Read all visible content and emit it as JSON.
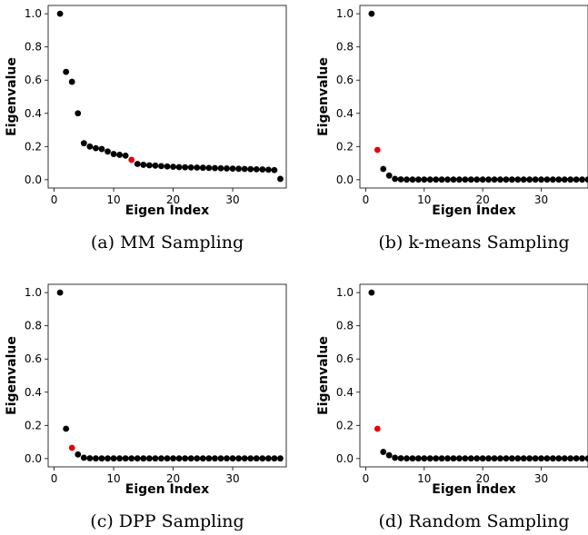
{
  "chart_data": [
    {
      "type": "scatter",
      "caption": "(a) MM Sampling",
      "xlabel": "Eigen Index",
      "ylabel": "Eigenvalue",
      "xlim": [
        -1,
        39
      ],
      "ylim": [
        -0.05,
        1.05
      ],
      "xticks": [
        "0",
        "10",
        "20",
        "30"
      ],
      "yticks": [
        "0.0",
        "0.2",
        "0.4",
        "0.6",
        "0.8",
        "1.0"
      ],
      "x": [
        1,
        2,
        3,
        4,
        5,
        6,
        7,
        8,
        9,
        10,
        11,
        12,
        13,
        14,
        15,
        16,
        17,
        18,
        19,
        20,
        21,
        22,
        23,
        24,
        25,
        26,
        27,
        28,
        29,
        30,
        31,
        32,
        33,
        34,
        35,
        36,
        37,
        38
      ],
      "y": [
        1.0,
        0.65,
        0.59,
        0.4,
        0.22,
        0.2,
        0.19,
        0.185,
        0.17,
        0.155,
        0.15,
        0.145,
        0.12,
        0.095,
        0.09,
        0.087,
        0.085,
        0.082,
        0.08,
        0.078,
        0.076,
        0.075,
        0.074,
        0.073,
        0.072,
        0.071,
        0.07,
        0.069,
        0.068,
        0.067,
        0.066,
        0.065,
        0.064,
        0.063,
        0.062,
        0.06,
        0.058,
        0.005
      ],
      "highlight_index": 13,
      "colors": {
        "point": "#000000",
        "highlight": "#e8000b"
      }
    },
    {
      "type": "scatter",
      "caption": "(b) k-means Sampling",
      "xlabel": "Eigen Index",
      "ylabel": "Eigenvalue",
      "xlim": [
        -1,
        38
      ],
      "ylim": [
        -0.05,
        1.05
      ],
      "xticks": [
        "0",
        "10",
        "20",
        "30"
      ],
      "yticks": [
        "0.0",
        "0.2",
        "0.4",
        "0.6",
        "0.8",
        "1.0"
      ],
      "x": [
        1,
        2,
        3,
        4,
        5,
        6,
        7,
        8,
        9,
        10,
        11,
        12,
        13,
        14,
        15,
        16,
        17,
        18,
        19,
        20,
        21,
        22,
        23,
        24,
        25,
        26,
        27,
        28,
        29,
        30,
        31,
        32,
        33,
        34,
        35,
        36,
        37,
        38
      ],
      "y": [
        1.0,
        0.18,
        0.065,
        0.025,
        0.005,
        0.002,
        0.001,
        0.001,
        0.001,
        0.001,
        0.001,
        0.001,
        0.001,
        0.001,
        0.001,
        0.001,
        0.001,
        0.001,
        0.001,
        0.001,
        0.001,
        0.001,
        0.001,
        0.001,
        0.001,
        0.001,
        0.001,
        0.001,
        0.001,
        0.001,
        0.001,
        0.001,
        0.001,
        0.001,
        0.001,
        0.001,
        0.001,
        0.001
      ],
      "highlight_index": 2,
      "colors": {
        "point": "#000000",
        "highlight": "#e8000b"
      }
    },
    {
      "type": "scatter",
      "caption": "(c) DPP Sampling",
      "xlabel": "Eigen Index",
      "ylabel": "Eigenvalue",
      "xlim": [
        -1,
        39
      ],
      "ylim": [
        -0.05,
        1.05
      ],
      "xticks": [
        "0",
        "10",
        "20",
        "30"
      ],
      "yticks": [
        "0.0",
        "0.2",
        "0.4",
        "0.6",
        "0.8",
        "1.0"
      ],
      "x": [
        1,
        2,
        3,
        4,
        5,
        6,
        7,
        8,
        9,
        10,
        11,
        12,
        13,
        14,
        15,
        16,
        17,
        18,
        19,
        20,
        21,
        22,
        23,
        24,
        25,
        26,
        27,
        28,
        29,
        30,
        31,
        32,
        33,
        34,
        35,
        36,
        37,
        38
      ],
      "y": [
        1.0,
        0.18,
        0.065,
        0.025,
        0.005,
        0.002,
        0.001,
        0.001,
        0.001,
        0.001,
        0.001,
        0.001,
        0.001,
        0.001,
        0.001,
        0.001,
        0.001,
        0.001,
        0.001,
        0.001,
        0.001,
        0.001,
        0.001,
        0.001,
        0.001,
        0.001,
        0.001,
        0.001,
        0.001,
        0.001,
        0.001,
        0.001,
        0.001,
        0.001,
        0.001,
        0.001,
        0.001,
        0.001
      ],
      "highlight_index": 3,
      "colors": {
        "point": "#000000",
        "highlight": "#e8000b"
      }
    },
    {
      "type": "scatter",
      "caption": "(d) Random Sampling",
      "xlabel": "Eigen Index",
      "ylabel": "Eigenvalue",
      "xlim": [
        -1,
        38
      ],
      "ylim": [
        -0.05,
        1.05
      ],
      "xticks": [
        "0",
        "10",
        "20",
        "30"
      ],
      "yticks": [
        "0.0",
        "0.2",
        "0.4",
        "0.6",
        "0.8",
        "1.0"
      ],
      "x": [
        1,
        2,
        3,
        4,
        5,
        6,
        7,
        8,
        9,
        10,
        11,
        12,
        13,
        14,
        15,
        16,
        17,
        18,
        19,
        20,
        21,
        22,
        23,
        24,
        25,
        26,
        27,
        28,
        29,
        30,
        31,
        32,
        33,
        34,
        35,
        36,
        37,
        38
      ],
      "y": [
        1.0,
        0.18,
        0.04,
        0.02,
        0.005,
        0.002,
        0.001,
        0.001,
        0.001,
        0.001,
        0.001,
        0.001,
        0.001,
        0.001,
        0.001,
        0.001,
        0.001,
        0.001,
        0.001,
        0.001,
        0.001,
        0.001,
        0.001,
        0.001,
        0.001,
        0.001,
        0.001,
        0.001,
        0.001,
        0.001,
        0.001,
        0.001,
        0.001,
        0.001,
        0.001,
        0.001,
        0.001,
        0.001
      ],
      "highlight_index": 2,
      "colors": {
        "point": "#000000",
        "highlight": "#e8000b"
      }
    }
  ]
}
